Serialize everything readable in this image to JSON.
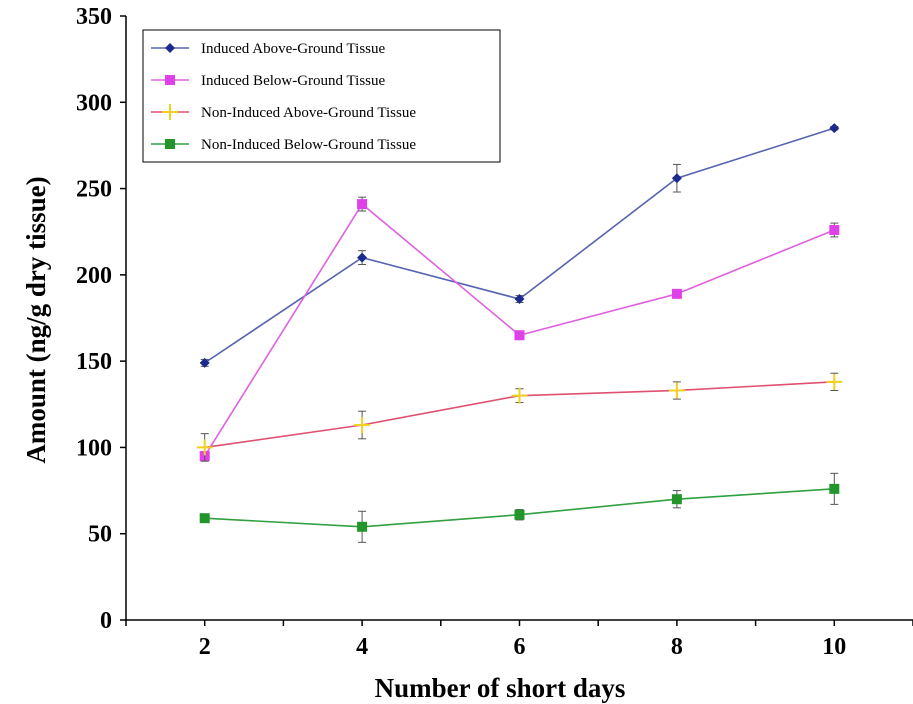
{
  "chart_data": {
    "type": "line",
    "title": "",
    "xlabel": "Number of short days",
    "ylabel": "Amount (ng/g dry tissue)",
    "xlim": [
      1,
      11
    ],
    "ylim": [
      0,
      350
    ],
    "x_ticks": [
      2,
      4,
      6,
      8,
      10
    ],
    "y_ticks": [
      0,
      50,
      100,
      150,
      200,
      250,
      300,
      350
    ],
    "grid": false,
    "legend_position": "top-left",
    "x": [
      2,
      4,
      6,
      8,
      10
    ],
    "series": [
      {
        "name": "Induced Above-Ground Tissue",
        "color": "#1c2a8c",
        "line_color": "#5563b0",
        "marker": "diamond",
        "values": [
          149,
          210,
          186,
          256,
          285
        ],
        "errors": [
          2,
          4,
          2,
          8,
          1
        ]
      },
      {
        "name": "Induced Below-Ground Tissue",
        "color": "#e040e8",
        "line_color": "#e060e0",
        "marker": "square",
        "values": [
          95,
          241,
          165,
          189,
          226
        ],
        "errors": [
          2,
          4,
          1,
          2,
          4
        ]
      },
      {
        "name": "Non-Induced Above-Ground Tissue",
        "color": "#f0d020",
        "line_color": "#e05070",
        "marker": "star",
        "values": [
          100,
          113,
          130,
          133,
          138
        ],
        "errors": [
          8,
          8,
          4,
          5,
          5
        ]
      },
      {
        "name": "Non-Induced Below-Ground Tissue",
        "color": "#22962a",
        "line_color": "#30a040",
        "marker": "square",
        "values": [
          59,
          54,
          61,
          70,
          76
        ],
        "errors": [
          1,
          9,
          3,
          5,
          9
        ]
      }
    ]
  }
}
